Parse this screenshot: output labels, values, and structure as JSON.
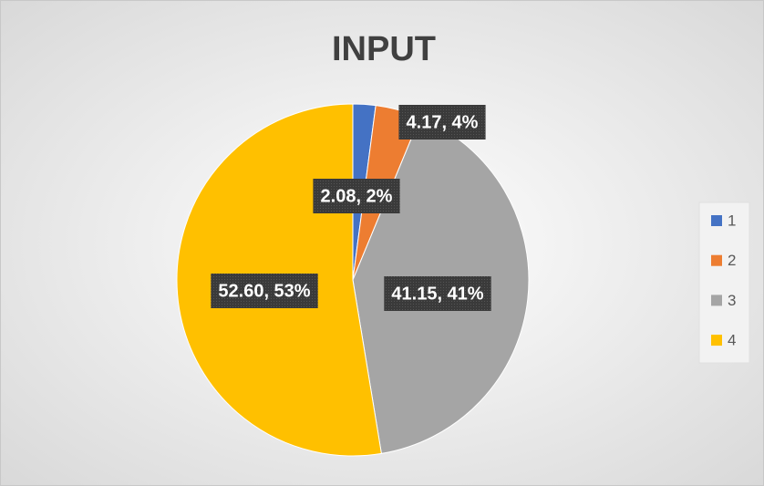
{
  "chart_data": {
    "type": "pie",
    "title": "INPUT",
    "categories": [
      "1",
      "2",
      "3",
      "4"
    ],
    "values": [
      2.08,
      4.17,
      41.15,
      52.6
    ],
    "value_labels": [
      "2.08, 2%",
      "4.17, 4%",
      "41.15, 41%",
      "52.60, 53%"
    ],
    "colors": [
      "#4472c4",
      "#ed7d31",
      "#a5a5a5",
      "#ffc000"
    ],
    "legend": "right"
  }
}
